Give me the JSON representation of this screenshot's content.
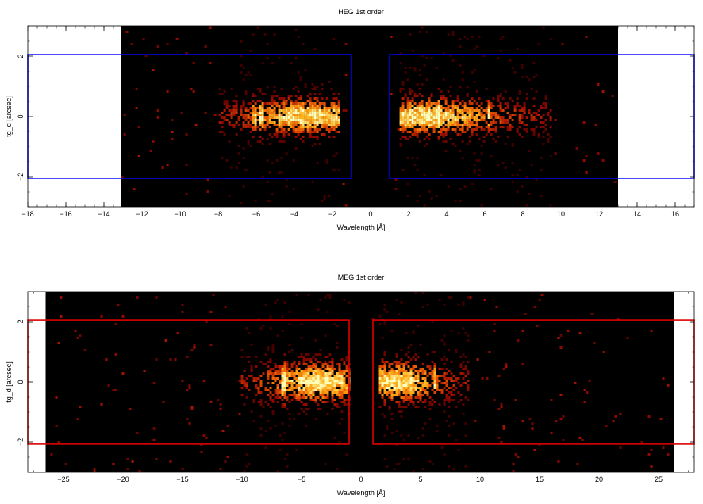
{
  "chart_data": [
    {
      "type": "heatmap",
      "title": "HEG 1st order",
      "xlabel": "Wavelength [Å]",
      "ylabel": "tg_d [arcsec]",
      "xlim": [
        -18,
        17
      ],
      "ylim": [
        -3,
        3
      ],
      "xticks": [
        -18,
        -16,
        -14,
        -12,
        -10,
        -8,
        -6,
        -4,
        -2,
        0,
        2,
        4,
        6,
        8,
        10,
        12,
        14,
        16
      ],
      "yticks": [
        -2,
        0,
        2
      ],
      "data_extent_x": [
        -13.1,
        13.0
      ],
      "colormap": "black-red-orange-yellow-white",
      "background": "#000000",
      "region_color": "#0000ff",
      "regions": [
        {
          "x": [
            -18,
            -1
          ],
          "y": [
            -2.05,
            2.05
          ]
        },
        {
          "x": [
            1,
            17
          ],
          "y": [
            -2.05,
            2.05
          ]
        }
      ],
      "emission_clusters": [
        {
          "x": [
            -8,
            -1.6
          ],
          "peak_x": -3.2,
          "sigma_y": 0.4
        },
        {
          "x": [
            1.5,
            9.5
          ],
          "peak_x": 2.8,
          "sigma_y": 0.4
        }
      ],
      "emission_lines": [
        -6.1,
        -5.7,
        3.6,
        6.2
      ]
    },
    {
      "type": "heatmap",
      "title": "MEG 1st order",
      "xlabel": "Wavelength [Å]",
      "ylabel": "tg_d [arcsec]",
      "xlim": [
        -28,
        28
      ],
      "ylim": [
        -3,
        3
      ],
      "xticks": [
        -25,
        -20,
        -15,
        -10,
        -5,
        0,
        5,
        10,
        15,
        20,
        25
      ],
      "yticks": [
        -2,
        0,
        2
      ],
      "data_extent_x": [
        -26.5,
        26.3
      ],
      "colormap": "black-red-orange-yellow-white",
      "background": "#000000",
      "region_color": "#dd0000",
      "regions": [
        {
          "x": [
            -28,
            -1
          ],
          "y": [
            -2.05,
            2.05
          ]
        },
        {
          "x": [
            1,
            28
          ],
          "y": [
            -2.05,
            2.05
          ]
        }
      ],
      "emission_clusters": [
        {
          "x": [
            -10,
            -1
          ],
          "peak_x": -3.5,
          "sigma_y": 0.45
        },
        {
          "x": [
            1.5,
            9
          ],
          "peak_x": 3.0,
          "sigma_y": 0.45
        }
      ],
      "emission_lines": [
        -6.5,
        6.2
      ]
    }
  ]
}
